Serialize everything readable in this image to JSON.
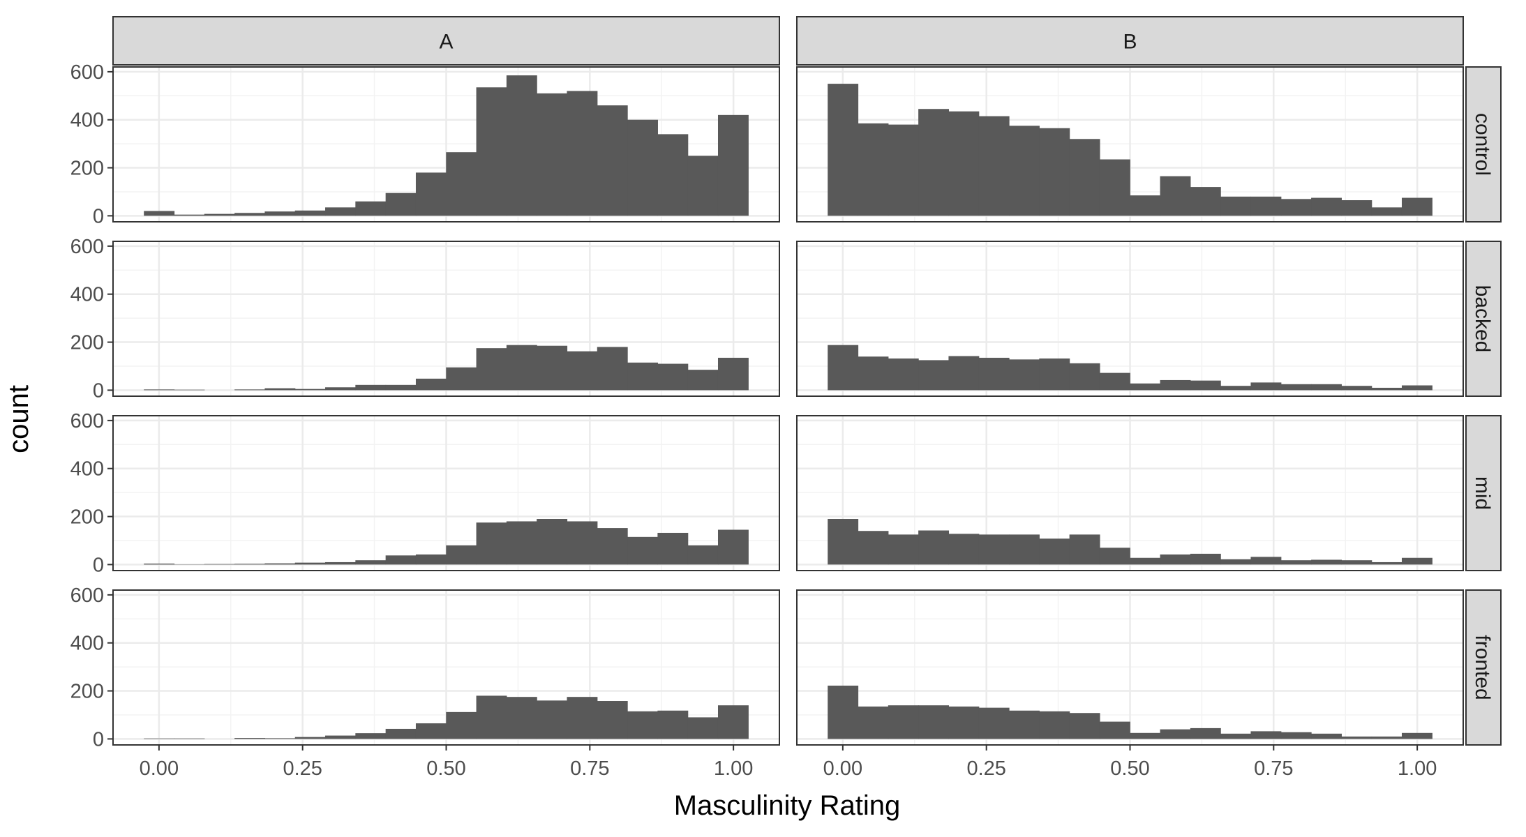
{
  "chart_data": {
    "type": "bar",
    "xlabel": "Masculinity Rating",
    "ylabel": "count",
    "xlim": [
      -0.08,
      1.08
    ],
    "ylim": [
      -25,
      620
    ],
    "x_ticks": [
      0,
      0.25,
      0.5,
      0.75,
      1
    ],
    "x_tick_labels": [
      "0.00",
      "0.25",
      "0.50",
      "0.75",
      "1.00"
    ],
    "y_ticks": [
      0,
      200,
      400,
      600
    ],
    "y_tick_labels": [
      "0",
      "200",
      "400",
      "600"
    ],
    "grid": true,
    "bin_width": 0.0526,
    "bin_start": -0.0263,
    "columns": [
      "A",
      "B"
    ],
    "rows": [
      "control",
      "backed",
      "mid",
      "fronted"
    ],
    "panels": [
      {
        "column": "A",
        "row": "control",
        "values": [
          20,
          5,
          8,
          12,
          18,
          22,
          35,
          60,
          95,
          180,
          265,
          535,
          585,
          510,
          520,
          460,
          400,
          340,
          250,
          420
        ]
      },
      {
        "column": "B",
        "row": "control",
        "values": [
          550,
          385,
          380,
          445,
          435,
          415,
          375,
          365,
          320,
          235,
          85,
          165,
          120,
          80,
          80,
          70,
          75,
          65,
          35,
          75
        ]
      },
      {
        "column": "A",
        "row": "backed",
        "values": [
          3,
          2,
          0,
          3,
          8,
          5,
          12,
          22,
          22,
          48,
          95,
          175,
          188,
          185,
          162,
          180,
          115,
          110,
          85,
          135
        ]
      },
      {
        "column": "B",
        "row": "backed",
        "values": [
          188,
          140,
          132,
          125,
          142,
          135,
          128,
          132,
          112,
          72,
          28,
          42,
          40,
          18,
          32,
          25,
          25,
          18,
          10,
          20
        ]
      },
      {
        "column": "A",
        "row": "mid",
        "values": [
          4,
          1,
          2,
          3,
          5,
          8,
          10,
          18,
          38,
          42,
          80,
          175,
          180,
          190,
          180,
          152,
          115,
          132,
          80,
          145
        ]
      },
      {
        "column": "B",
        "row": "mid",
        "values": [
          190,
          140,
          125,
          142,
          128,
          125,
          125,
          108,
          125,
          70,
          28,
          42,
          45,
          22,
          32,
          18,
          20,
          18,
          10,
          28
        ]
      },
      {
        "column": "A",
        "row": "fronted",
        "values": [
          2,
          2,
          0,
          4,
          3,
          8,
          14,
          24,
          42,
          65,
          112,
          180,
          175,
          160,
          175,
          158,
          115,
          118,
          90,
          140
        ]
      },
      {
        "column": "B",
        "row": "fronted",
        "values": [
          222,
          135,
          140,
          140,
          135,
          130,
          118,
          115,
          108,
          72,
          25,
          40,
          45,
          22,
          32,
          28,
          22,
          10,
          10,
          25
        ]
      }
    ]
  }
}
